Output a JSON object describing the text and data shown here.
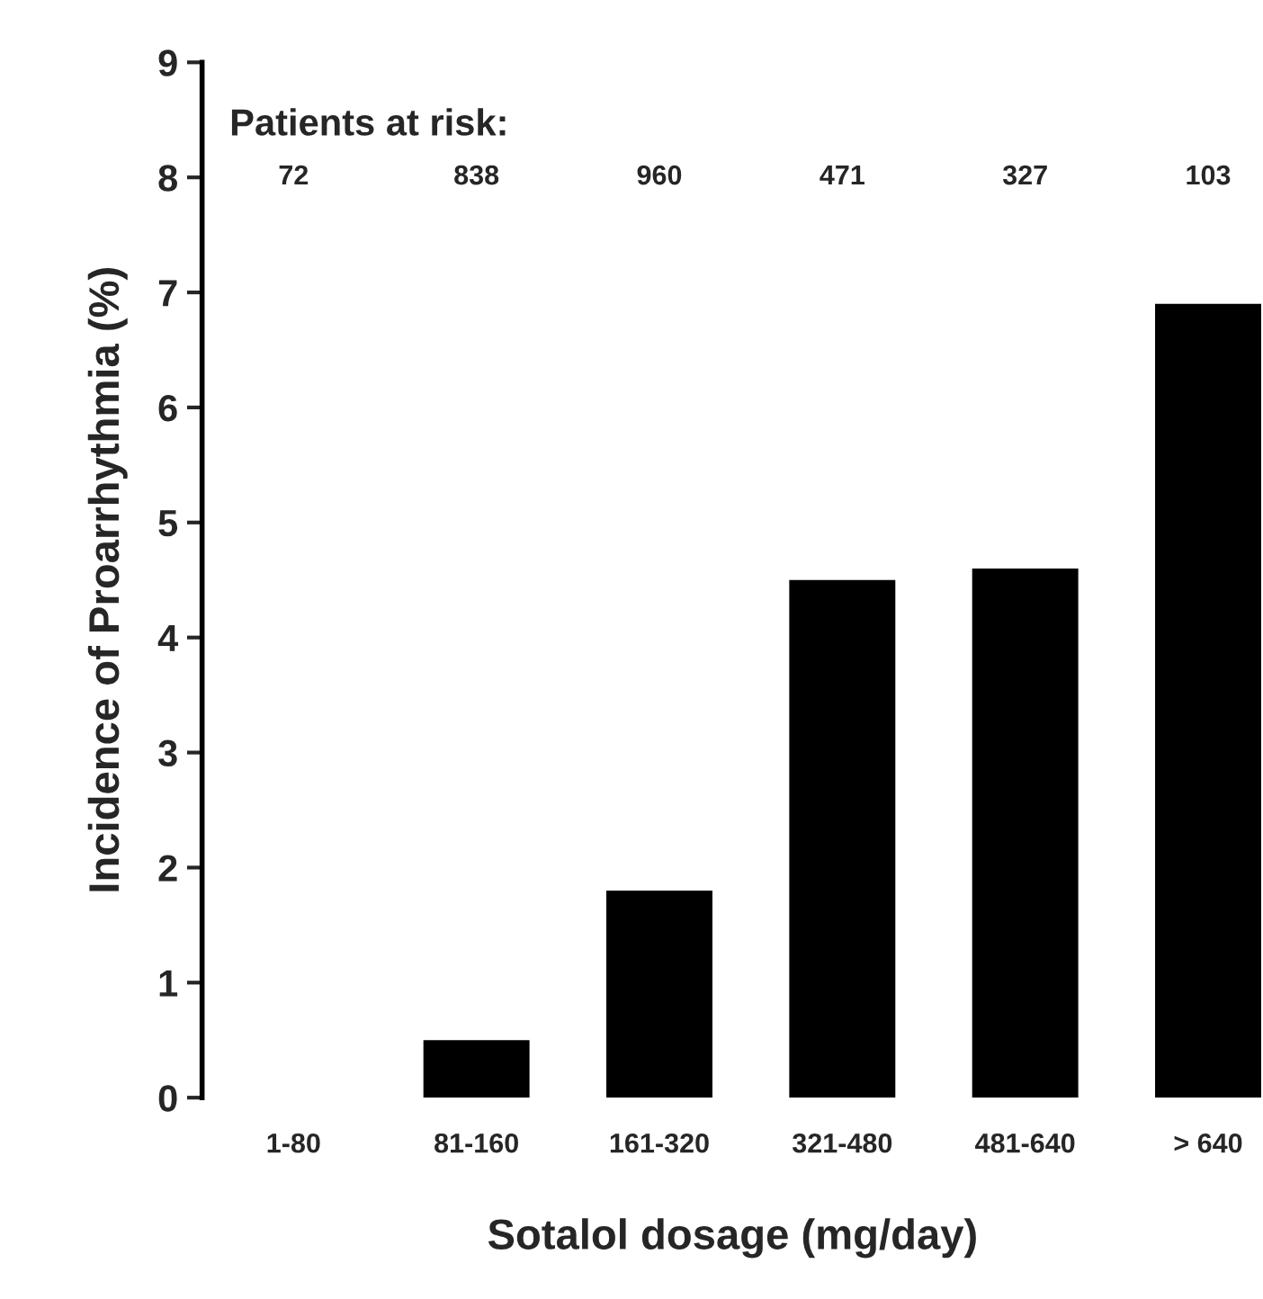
{
  "chart_data": {
    "type": "bar",
    "xlabel": "Sotalol dosage (mg/day)",
    "ylabel": "Incidence of Proarrhythmia (%)",
    "categories": [
      "1-80",
      "81-160",
      "161-320",
      "321-480",
      "481-640",
      "> 640"
    ],
    "values": [
      0,
      0.5,
      1.8,
      4.5,
      4.6,
      6.9
    ],
    "color": "#000000",
    "ylim": [
      0,
      9
    ],
    "yticks": [
      0,
      1,
      2,
      3,
      4,
      5,
      6,
      7,
      8,
      9
    ],
    "grid": false,
    "legend": false,
    "annotations": [
      "Patients at risk:",
      "72",
      "838",
      "960",
      "471",
      "327",
      "103"
    ]
  }
}
